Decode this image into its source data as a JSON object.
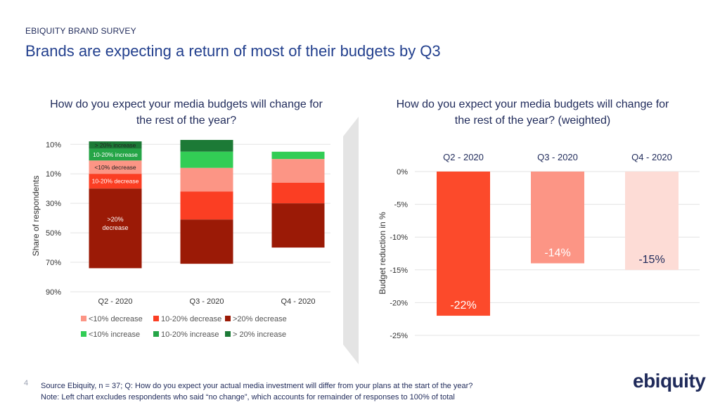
{
  "header": {
    "kicker": "EBIQUITY BRAND SURVEY",
    "title": "Brands are expecting a return of most of their budgets by Q3"
  },
  "chart_data": [
    {
      "type": "bar",
      "stacked": true,
      "title": "How do you expect your media budgets will change for the rest of the year?",
      "ylabel": "Share of respondents",
      "ytick_labels": [
        "10%",
        "10%",
        "30%",
        "50%",
        "70%",
        "90%"
      ],
      "ytick_values": [
        -10,
        10,
        30,
        50,
        70,
        90
      ],
      "ylim": [
        -13,
        90
      ],
      "categories": [
        "Q2 - 2020",
        "Q3 - 2020",
        "Q4 - 2020"
      ],
      "series": [
        {
          "name": ">20% decrease",
          "color": "#9b1a06",
          "values": [
            54,
            30,
            30
          ]
        },
        {
          "name": "10-20% decrease",
          "color": "#fb3e23",
          "values": [
            10,
            19,
            14
          ]
        },
        {
          "name": "<10% decrease",
          "color": "#fc9585",
          "values": [
            9,
            16,
            16
          ]
        },
        {
          "name": "<10% increase",
          "color": "#32cd55",
          "values": [
            0,
            11,
            5
          ]
        },
        {
          "name": "10-20% increase",
          "color": "#25a547",
          "values": [
            8,
            0,
            0
          ]
        },
        {
          "name": "> 20% increase",
          "color": "#1c7a36",
          "values": [
            5,
            8,
            0
          ]
        }
      ],
      "data_labels": {
        "Q2 - 2020": {
          ">20% decrease": ">20% decrease",
          "10-20% decrease": "10-20% decrease",
          "<10% decrease": "<10% decrease",
          "10-20% increase": "10-20% increase",
          "> 20% increase": "> 20% increase"
        }
      },
      "legend": [
        "<10% decrease",
        "10-20% decrease",
        ">20% decrease",
        "<10% increase",
        "10-20% increase",
        "> 20% increase"
      ],
      "legend_position": "bottom"
    },
    {
      "type": "bar",
      "title": "How do you expect your media budgets will change for the rest of the year? (weighted)",
      "ylabel": "Budget reduction in %",
      "categories": [
        "Q2 - 2020",
        "Q3 - 2020",
        "Q4 - 2020"
      ],
      "values": [
        -22,
        -14,
        -15
      ],
      "value_labels": [
        "-22%",
        "-14%",
        "-15%"
      ],
      "colors": [
        "#fc4a2b",
        "#fc9585",
        "#fddcd6"
      ],
      "ylim": [
        -25,
        0
      ],
      "ytick_labels": [
        "0%",
        "-5%",
        "-10%",
        "-15%",
        "-20%",
        "-25%"
      ],
      "ytick_values": [
        0,
        -5,
        -10,
        -15,
        -20,
        -25
      ]
    }
  ],
  "footer": {
    "page_number": "4",
    "source": "Source Ebiquity, n = 37; Q: How do you expect your actual media investment will differ from your plans at the start of the year?",
    "note": "Note: Left chart excludes respondents who said “no change”, which accounts for remainder of responses to 100% of total",
    "logo_text": "ebiquity"
  }
}
